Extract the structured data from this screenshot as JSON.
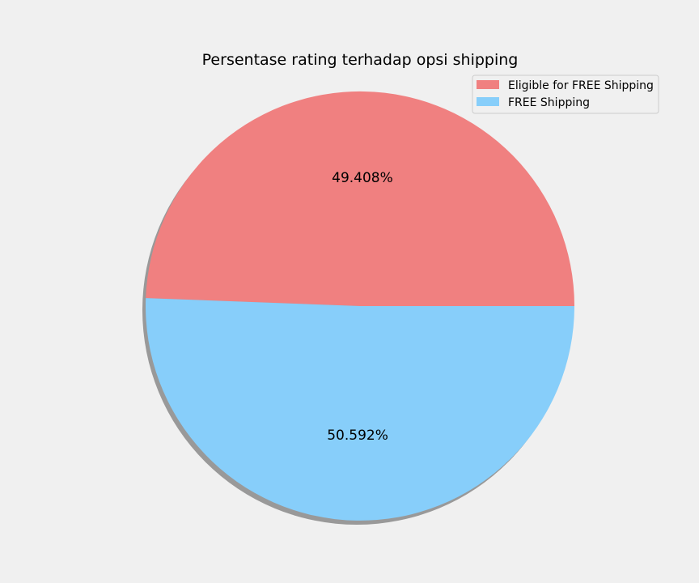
{
  "chart_data": {
    "type": "pie",
    "title": "Persentase rating terhadap opsi shipping",
    "categories": [
      "Eligible for FREE Shipping",
      "FREE Shipping"
    ],
    "values": [
      49.408,
      50.592
    ],
    "value_labels": [
      "49.408%",
      "50.592%"
    ],
    "colors": [
      "#f08080",
      "#87cefa"
    ],
    "shadow": true,
    "start_angle": 0,
    "direction": "counterclockwise",
    "legend_placement": "top-right",
    "grid": false
  }
}
